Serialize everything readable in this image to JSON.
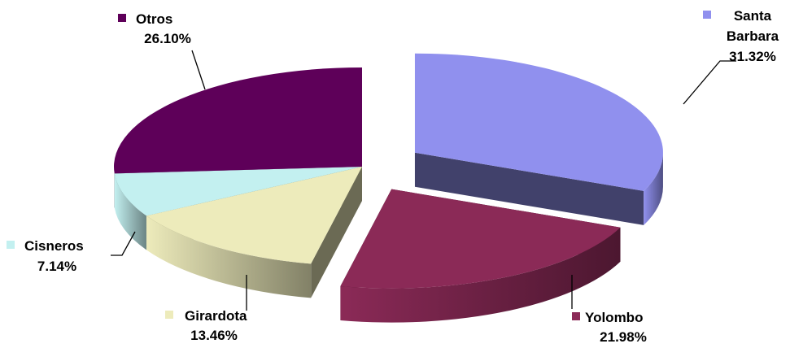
{
  "chart_data": {
    "type": "pie",
    "title": "",
    "labels_on_chart": true,
    "legend": "none",
    "slices": [
      {
        "name": "Santa Barbara",
        "name_lines": [
          "Santa",
          "Barbara"
        ],
        "value": 31.32,
        "value_label": "31.32%",
        "color": "#9090EE",
        "exploded": true
      },
      {
        "name": "Yolombo",
        "name_lines": [
          "Yolombo"
        ],
        "value": 21.98,
        "value_label": "21.98%",
        "color": "#8B2A57",
        "exploded": true
      },
      {
        "name": "Girardota",
        "name_lines": [
          "Girardota"
        ],
        "value": 13.46,
        "value_label": "13.46%",
        "color": "#EDEBBB",
        "exploded": false
      },
      {
        "name": "Cisneros",
        "name_lines": [
          "Cisneros"
        ],
        "value": 7.14,
        "value_label": "7.14%",
        "color": "#C3F0F0",
        "exploded": false
      },
      {
        "name": "Otros",
        "name_lines": [
          "Otros"
        ],
        "value": 26.1,
        "value_label": "26.10%",
        "color": "#5E0059",
        "exploded": false
      }
    ]
  }
}
